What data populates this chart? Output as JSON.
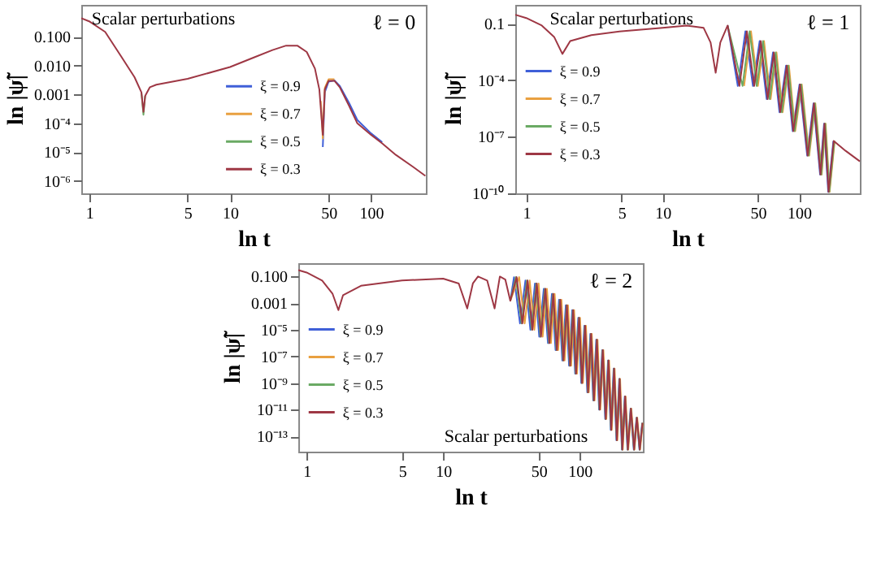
{
  "chart_data": [
    {
      "type": "line",
      "xlabel": "ln t",
      "ylabel": "ln |ψ̃|",
      "log": "xy",
      "legend": "center",
      "annotations": [
        "Scalar perturbations",
        "ℓ = 0"
      ],
      "xlim": [
        0.88,
        245
      ],
      "xticks": [
        1,
        5,
        10,
        50,
        100
      ],
      "ylim": [
        3.7e-07,
        1.3
      ],
      "yticks": [
        {
          "value": 0.1,
          "label": "0.100"
        },
        {
          "value": 0.01,
          "label": "0.010"
        },
        {
          "value": 0.001,
          "label": "0.001"
        },
        {
          "value": 0.0001,
          "label": "10⁻⁴"
        },
        {
          "value": 1e-05,
          "label": "10⁻⁵"
        },
        {
          "value": 1e-06,
          "label": "10⁻⁶"
        }
      ],
      "x": [
        0.88,
        1,
        1.3,
        1.7,
        2.1,
        2.35,
        2.43,
        2.5,
        2.7,
        3,
        5,
        10,
        15,
        20,
        25,
        30,
        35,
        40,
        43,
        45.5,
        47,
        50,
        55,
        60,
        70,
        80,
        100,
        120,
        150,
        200,
        243
      ],
      "series": [
        {
          "name": "ξ = 0.9",
          "color": "#3f5fd8",
          "x": [
            45.5,
            47,
            50,
            55,
            60,
            70,
            80,
            100,
            120
          ],
          "values": [
            1.5e-05,
            0.0012,
            0.0028,
            0.0031,
            0.002,
            0.0005,
            0.00013,
            4.5e-05,
            2.2e-05
          ]
        },
        {
          "name": "ξ = 0.7",
          "color": "#e9a040",
          "x": [
            44,
            45.5,
            47,
            50,
            55
          ],
          "values": [
            0.0006,
            3e-05,
            0.0017,
            0.0034,
            0.0034
          ]
        },
        {
          "name": "ξ = 0.5",
          "color": "#6aaa64",
          "values": [
            null,
            null,
            null,
            null,
            null,
            0.0012,
            0.0002,
            0.0009,
            null,
            null,
            null,
            null,
            null,
            null,
            null,
            null,
            null,
            null,
            null,
            null,
            null,
            null,
            null,
            null,
            null,
            null,
            null,
            null,
            null,
            null,
            null
          ]
        },
        {
          "name": "ξ = 0.3",
          "color": "#9e3744",
          "values": [
            0.45,
            0.35,
            0.15,
            0.02,
            0.004,
            0.0012,
            0.00025,
            0.0009,
            0.0018,
            0.0022,
            0.0035,
            0.009,
            0.02,
            0.035,
            0.05,
            0.05,
            0.03,
            0.008,
            0.0015,
            4e-05,
            0.0015,
            0.003,
            0.003,
            0.0018,
            0.0004,
            0.0001,
            4e-05,
            2e-05,
            8e-06,
            3e-06,
            1.5e-06
          ]
        }
      ]
    },
    {
      "type": "line",
      "xlabel": "ln t",
      "ylabel": "ln |ψ̃|",
      "log": "xy",
      "legend": "left",
      "annotations": [
        "Scalar perturbations",
        "ℓ = 1"
      ],
      "xlim": [
        0.83,
        280
      ],
      "xticks": [
        1,
        5,
        10,
        50,
        100
      ],
      "ylim": [
        1e-10,
        1
      ],
      "yticks": [
        {
          "value": 0.1,
          "label": "0.1"
        },
        {
          "value": 0.0001,
          "label": "10⁻⁴"
        },
        {
          "value": 1e-07,
          "label": "10⁻⁷"
        },
        {
          "value": 1e-10,
          "label": "10⁻¹⁰"
        }
      ],
      "series": [
        {
          "name": "ξ = 0.9",
          "color": "#3f5fd8",
          "x": [
            30,
            35.6,
            40.5,
            46,
            51.5,
            58,
            64.5,
            72,
            80.5,
            90,
            101,
            115,
            128,
            143,
            153,
            164,
            179
          ],
          "values": [
            0.08,
            5e-05,
            0.04,
            5e-05,
            0.012,
            1e-05,
            0.003,
            2e-06,
            0.0006,
            2e-07,
            6e-05,
            1e-08,
            6e-06,
            1e-09,
            5e-07,
            1.2e-10,
            6e-08
          ]
        },
        {
          "name": "ξ = 0.7",
          "color": "#e9a040",
          "x": [
            39.6,
            44.5,
            50,
            55.5,
            62,
            68.5,
            76,
            84.5,
            94,
            105,
            119,
            132,
            147,
            157,
            168,
            183
          ],
          "values": [
            5e-05,
            0.04,
            5e-05,
            0.012,
            1e-05,
            0.003,
            2e-06,
            0.0006,
            2e-07,
            6e-05,
            1e-08,
            6e-06,
            1e-09,
            5e-07,
            1.2e-10,
            6e-08
          ]
        },
        {
          "name": "ξ = 0.5",
          "color": "#6aaa64",
          "x": [
            30,
            38.6,
            43.5,
            49,
            54.5,
            61,
            67.5,
            75,
            83.5,
            93,
            104,
            118,
            131,
            146,
            156,
            167,
            182
          ],
          "values": [
            0.08,
            5e-05,
            0.04,
            5e-05,
            0.012,
            1e-05,
            0.003,
            2e-06,
            0.0006,
            2e-07,
            6e-05,
            1e-08,
            6e-06,
            1e-09,
            5e-07,
            1.2e-10,
            6e-08
          ]
        },
        {
          "name": "ξ = 0.3",
          "color": "#9e3744",
          "x": [
            0.83,
            1,
            1.3,
            1.6,
            1.84,
            2.1,
            3,
            5,
            10,
            15,
            20,
            22.5,
            24.5,
            26.5,
            30,
            36.6,
            41.5,
            47,
            52.5,
            59,
            65.5,
            73,
            81.5,
            91,
            102,
            116,
            129,
            144,
            154,
            165,
            180,
            220,
            280
          ],
          "values": [
            0.3,
            0.2,
            0.08,
            0.02,
            0.0025,
            0.012,
            0.025,
            0.04,
            0.06,
            0.08,
            0.06,
            0.01,
            0.00025,
            0.01,
            0.08,
            5e-05,
            0.04,
            5e-05,
            0.012,
            1e-05,
            0.003,
            2e-06,
            0.0006,
            2e-07,
            6e-05,
            1e-08,
            6e-06,
            1e-09,
            5e-07,
            1.2e-10,
            6e-08,
            1.8e-08,
            5e-09
          ]
        }
      ]
    },
    {
      "type": "line",
      "xlabel": "ln t",
      "ylabel": "ln |ψ̃|",
      "log": "xy",
      "legend": "left",
      "annotations": [
        "Scalar perturbations",
        "ℓ = 2"
      ],
      "xlim": [
        0.87,
        290
      ],
      "xticks": [
        1,
        5,
        10,
        50,
        100
      ],
      "ylim": [
        7e-15,
        1
      ],
      "yticks": [
        {
          "value": 0.1,
          "label": "0.100"
        },
        {
          "value": 0.001,
          "label": "0.001"
        },
        {
          "value": 1e-05,
          "label": "10⁻⁵"
        },
        {
          "value": 1e-07,
          "label": "10⁻⁷"
        },
        {
          "value": 1e-09,
          "label": "10⁻⁹"
        },
        {
          "value": 1e-11,
          "label": "10⁻¹¹"
        },
        {
          "value": 1e-13,
          "label": "10⁻¹³"
        }
      ],
      "series": [
        {
          "name": "ξ = 0.9",
          "color": "#3f5fd8",
          "x": [
            31,
            33,
            36.5,
            40,
            43.5,
            47,
            50.5,
            54.5,
            58.5,
            62.5,
            66.5,
            70.5,
            74.5,
            79,
            83.5,
            88,
            92.5,
            97.5,
            102.5,
            108,
            113.5,
            119.5,
            125.5,
            132,
            138.5,
            146,
            153.5,
            161,
            168.5,
            177,
            185.5,
            194.5,
            203.5,
            213.5,
            223.5,
            235.5,
            248.5,
            260.5,
            273.5,
            286.5
          ],
          "values": [
            0.0015,
            0.09,
            3e-05,
            0.05,
            1e-05,
            0.03,
            3e-06,
            0.012,
            1e-06,
            0.005,
            3e-07,
            0.0018,
            5e-08,
            0.0007,
            2e-08,
            0.0003,
            5e-09,
            8e-05,
            1e-09,
            2e-05,
            2e-10,
            5e-06,
            5e-11,
            1.8e-06,
            1e-11,
            3e-07,
            2e-12,
            5e-08,
            3e-13,
            1.2e-08,
            5e-14,
            2e-09,
            1e-14,
            1e-10,
            1e-14,
            1.2e-11,
            1e-14,
            2.5e-12,
            1e-14,
            1e-12
          ]
        },
        {
          "name": "ξ = 0.7",
          "color": "#e9a040",
          "x": [
            31,
            36,
            39.5,
            43,
            46.5,
            50,
            53.5,
            57.5,
            61.5,
            65.5,
            69.5,
            73.5,
            77.5,
            82,
            86.5,
            91,
            95.5,
            100.5,
            105.5,
            111,
            116.5,
            122.5,
            128.5,
            135,
            141.5,
            149,
            156.5,
            164,
            171.5,
            180,
            188.5,
            197.5,
            206.5,
            216.5,
            226.5,
            238.5,
            251.5,
            263.5,
            276.5,
            289.5
          ],
          "values": [
            0.0015,
            0.09,
            3e-05,
            0.05,
            1e-05,
            0.03,
            3e-06,
            0.012,
            1e-06,
            0.005,
            3e-07,
            0.0018,
            5e-08,
            0.0007,
            2e-08,
            0.0003,
            5e-09,
            8e-05,
            1e-09,
            2e-05,
            2e-10,
            5e-06,
            5e-11,
            1.8e-06,
            1e-11,
            3e-07,
            2e-12,
            5e-08,
            3e-13,
            1.2e-08,
            5e-14,
            2e-09,
            1e-14,
            1e-10,
            1e-14,
            1.2e-11,
            1e-14,
            2.5e-12,
            1e-14,
            1e-12
          ]
        },
        {
          "name": "ξ = 0.5",
          "color": "#6aaa64",
          "x": [
            31,
            34,
            37.5,
            41,
            44.5,
            48,
            51.5,
            55.5,
            59.5,
            63.5,
            67.5,
            71.5,
            75.5,
            80,
            84.5,
            89,
            93.5,
            98.5,
            103.5,
            109,
            114.5,
            120.5,
            126.5,
            133,
            139.5,
            147,
            154.5,
            162,
            169.5,
            178,
            186.5,
            195.5,
            204.5,
            214.5,
            224.5,
            236.5,
            249.5,
            261.5,
            274.5,
            287.5
          ],
          "values": [
            0.0015,
            0.09,
            3e-05,
            0.05,
            1e-05,
            0.03,
            3e-06,
            0.012,
            1e-06,
            0.005,
            3e-07,
            0.0018,
            5e-08,
            0.0007,
            2e-08,
            0.0003,
            5e-09,
            8e-05,
            1e-09,
            2e-05,
            2e-10,
            5e-06,
            5e-11,
            1.8e-06,
            1e-11,
            3e-07,
            2e-12,
            5e-08,
            3e-13,
            1.2e-08,
            5e-14,
            2e-09,
            1e-14,
            1e-10,
            1e-14,
            1.2e-11,
            1e-14,
            2.5e-12,
            1e-14,
            1e-12
          ]
        },
        {
          "name": "ξ = 0.3",
          "color": "#9e3744",
          "x": [
            0.87,
            1,
            1.3,
            1.55,
            1.71,
            1.85,
            2.5,
            5,
            10,
            13,
            15,
            16.5,
            18,
            21,
            23.8,
            26,
            28.5,
            31,
            34.5,
            38,
            41.5,
            45,
            48.5,
            52,
            56,
            60,
            64,
            68,
            72,
            76,
            80.5,
            85,
            89.5,
            94,
            99,
            104,
            109.5,
            115,
            121,
            127,
            133.5,
            140,
            147.5,
            155,
            162.5,
            170,
            178.5,
            187,
            196,
            205,
            215,
            225,
            237,
            250,
            262,
            275,
            288
          ],
          "values": [
            0.3,
            0.2,
            0.05,
            0.005,
            0.0003,
            0.004,
            0.02,
            0.05,
            0.07,
            0.03,
            0.0004,
            0.03,
            0.1,
            0.05,
            0.0004,
            0.1,
            0.06,
            0.0015,
            0.09,
            3e-05,
            0.05,
            1e-05,
            0.03,
            3e-06,
            0.012,
            1e-06,
            0.005,
            3e-07,
            0.0018,
            5e-08,
            0.0007,
            2e-08,
            0.0003,
            5e-09,
            8e-05,
            1e-09,
            2e-05,
            2e-10,
            5e-06,
            5e-11,
            1.8e-06,
            1e-11,
            3e-07,
            2e-12,
            5e-08,
            3e-13,
            1.2e-08,
            5e-14,
            2e-09,
            1e-14,
            1e-10,
            1e-14,
            1.2e-11,
            1e-14,
            2.5e-12,
            1e-14,
            1e-12
          ]
        }
      ]
    }
  ]
}
